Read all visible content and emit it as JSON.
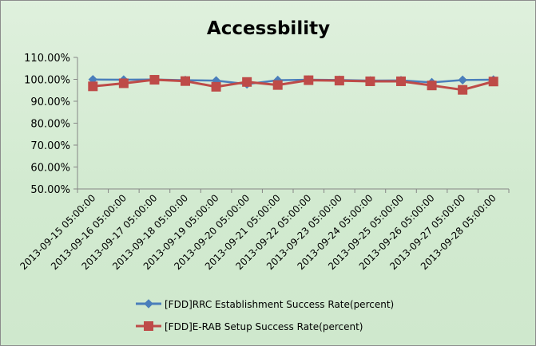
{
  "chart_data": {
    "type": "line",
    "title": "Accessbility",
    "xlabel": "",
    "ylabel": "",
    "ylim": [
      50,
      110
    ],
    "yticks": [
      "50.00%",
      "60.00%",
      "70.00%",
      "80.00%",
      "90.00%",
      "100.00%",
      "110.00%"
    ],
    "categories": [
      "2013-09-15 05:00:00",
      "2013-09-16 05:00:00",
      "2013-09-17 05:00:00",
      "2013-09-18 05:00:00",
      "2013-09-19 05:00:00",
      "2013-09-20 05:00:00",
      "2013-09-21 05:00:00",
      "2013-09-22 05:00:00",
      "2013-09-23 05:00:00",
      "2013-09-24 05:00:00",
      "2013-09-25 05:00:00",
      "2013-09-26 05:00:00",
      "2013-09-27 05:00:00",
      "2013-09-28 05:00:00"
    ],
    "series": [
      {
        "name": "[FDD]RRC Establishment Success Rate(percent)",
        "color": "#4a7ebb",
        "marker": "diamond",
        "values": [
          99.9,
          99.8,
          99.9,
          99.6,
          99.4,
          97.8,
          99.6,
          99.8,
          99.7,
          99.4,
          99.5,
          98.6,
          99.7,
          99.8
        ]
      },
      {
        "name": "[FDD]E-RAB Setup Success Rate(percent)",
        "color": "#be4b48",
        "marker": "square",
        "values": [
          96.8,
          98.2,
          99.8,
          99.2,
          96.6,
          98.8,
          97.4,
          99.6,
          99.4,
          99.1,
          99.1,
          97.2,
          95.2,
          99.0
        ]
      }
    ],
    "grid": false,
    "legend_position": "bottom"
  }
}
